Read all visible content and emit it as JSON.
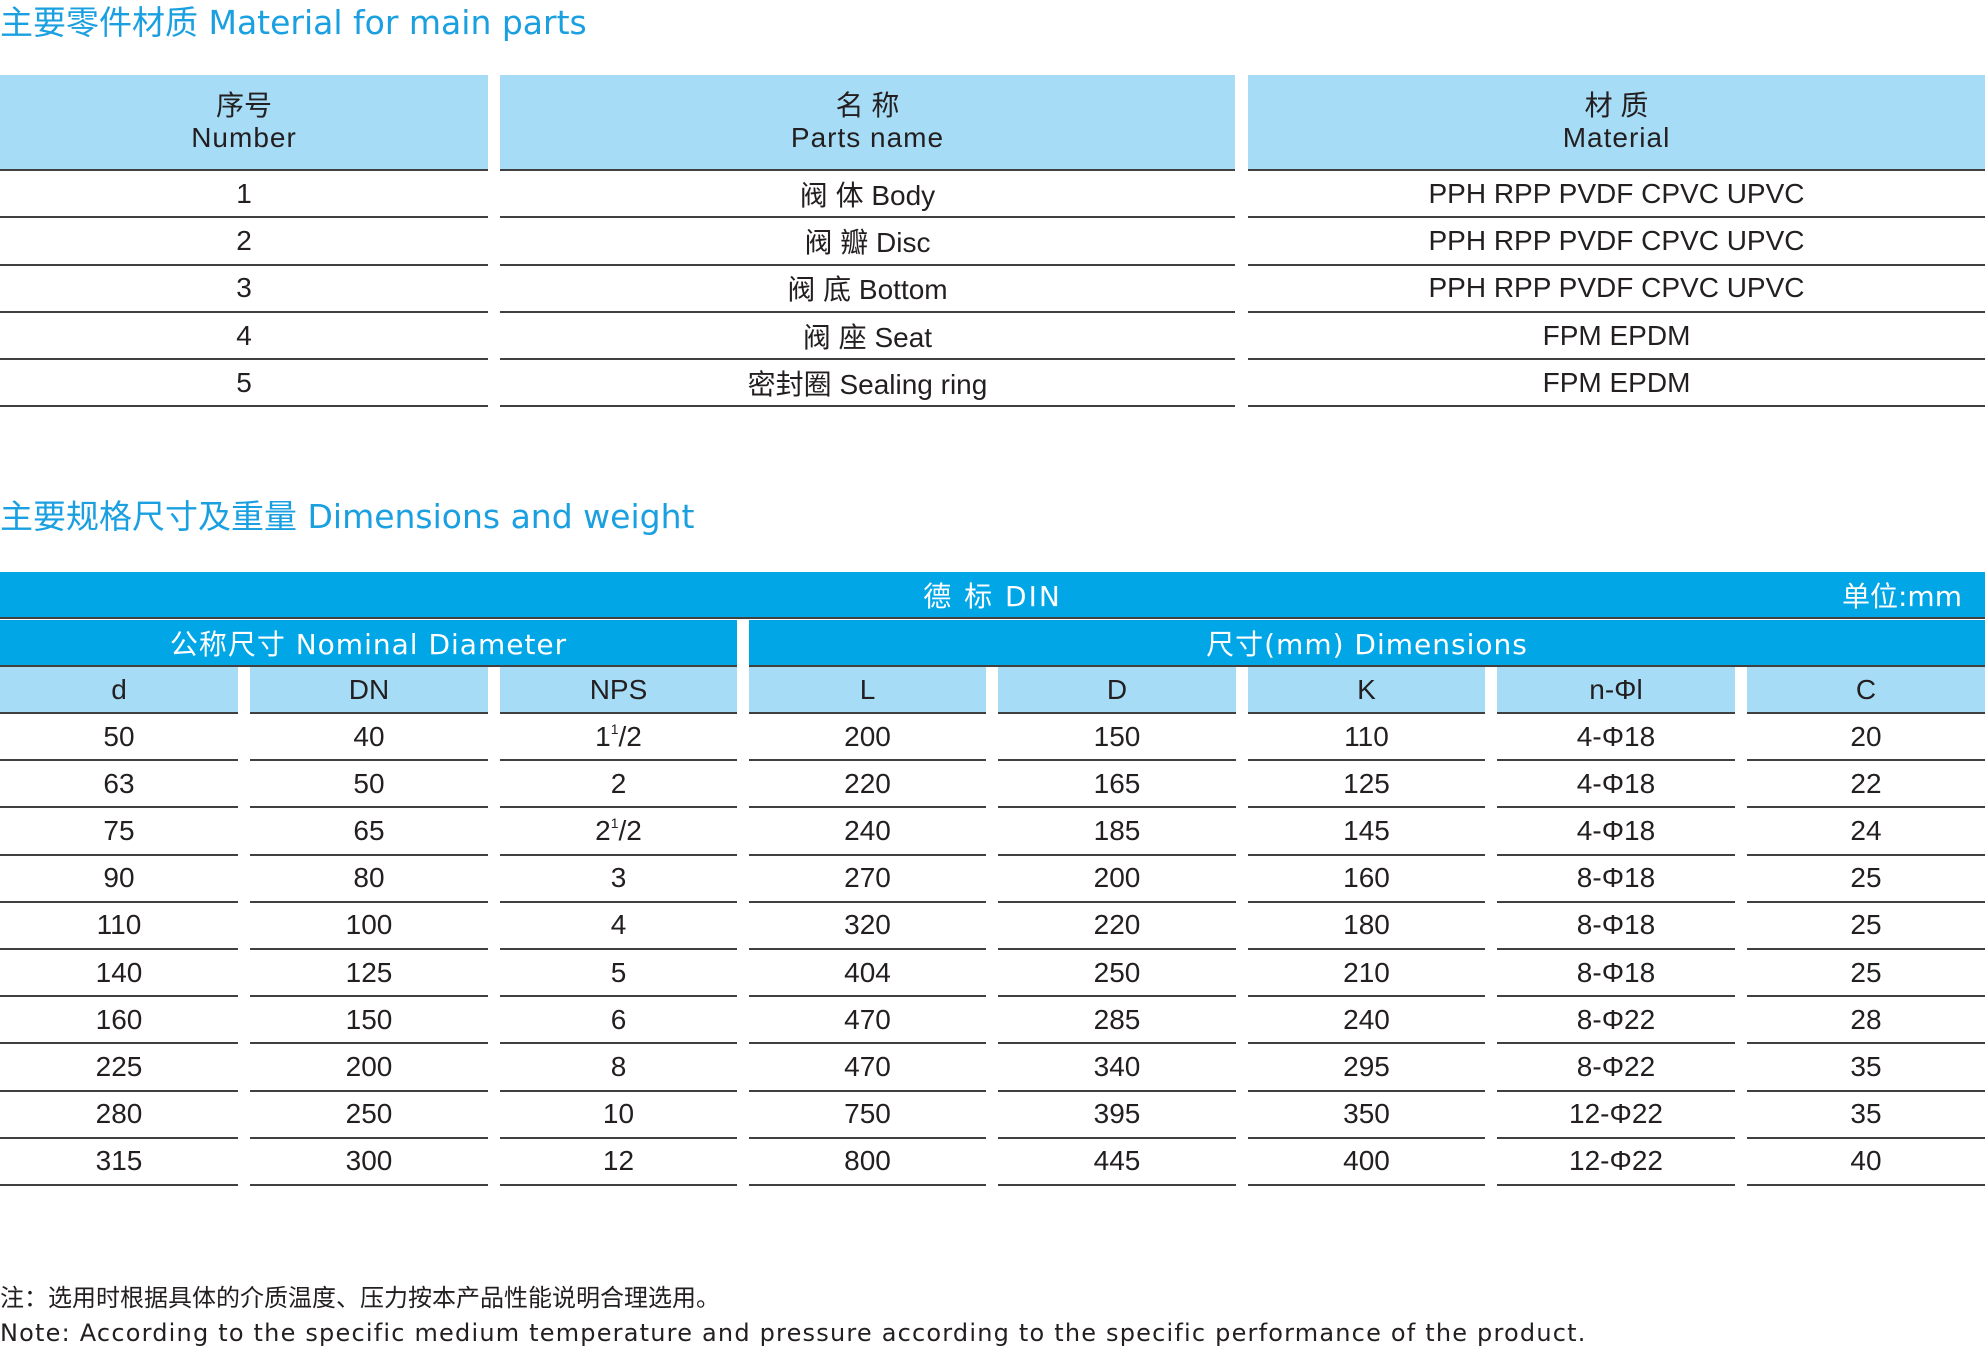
{
  "materials": {
    "title": "主要零件材质  Material for main parts",
    "headers": [
      {
        "cn": "序号",
        "en": "Number"
      },
      {
        "cn": "名 称",
        "en": "Parts name"
      },
      {
        "cn": "材 质",
        "en": "Material"
      }
    ],
    "rows": [
      {
        "number": "1",
        "name": "阀 体  Body",
        "material": "PPH  RPP  PVDF  CPVC  UPVC"
      },
      {
        "number": "2",
        "name": "阀 瓣  Disc",
        "material": "PPH  RPP  PVDF  CPVC  UPVC"
      },
      {
        "number": "3",
        "name": "阀 底  Bottom",
        "material": "PPH  RPP  PVDF  CPVC  UPVC"
      },
      {
        "number": "4",
        "name": "阀 座  Seat",
        "material": "FPM  EPDM"
      },
      {
        "number": "5",
        "name": "密封圈  Sealing ring",
        "material": "FPM  EPDM"
      }
    ]
  },
  "dimensions": {
    "title": "主要规格尺寸及重量  Dimensions and weight",
    "standard": "德 标  DIN",
    "unit": "单位:mm",
    "group_nominal": "公称尺寸  Nominal  Diameter",
    "group_dims": "尺寸(mm)   Dimensions",
    "columns": [
      "d",
      "DN",
      "NPS",
      "L",
      "D",
      "K",
      "n-Φl",
      "C"
    ],
    "rows": [
      [
        "50",
        "40",
        "1|1|2",
        "200",
        "150",
        "110",
        "4-Φ18",
        "20"
      ],
      [
        "63",
        "50",
        "2",
        "220",
        "165",
        "125",
        "4-Φ18",
        "22"
      ],
      [
        "75",
        "65",
        "2|1|2",
        "240",
        "185",
        "145",
        "4-Φ18",
        "24"
      ],
      [
        "90",
        "80",
        "3",
        "270",
        "200",
        "160",
        "8-Φ18",
        "25"
      ],
      [
        "110",
        "100",
        "4",
        "320",
        "220",
        "180",
        "8-Φ18",
        "25"
      ],
      [
        "140",
        "125",
        "5",
        "404",
        "250",
        "210",
        "8-Φ18",
        "25"
      ],
      [
        "160",
        "150",
        "6",
        "470",
        "285",
        "240",
        "8-Φ22",
        "28"
      ],
      [
        "225",
        "200",
        "8",
        "470",
        "340",
        "295",
        "8-Φ22",
        "35"
      ],
      [
        "280",
        "250",
        "10",
        "750",
        "395",
        "350",
        "12-Φ22",
        "35"
      ],
      [
        "315",
        "300",
        "12",
        "800",
        "445",
        "400",
        "12-Φ22",
        "40"
      ]
    ]
  },
  "notes": {
    "cn": "注：选用时根据具体的介质温度、压力按本产品性能说明合理选用。",
    "en": "Note: According to the specific medium temperature and pressure according to the specific performance of the product."
  },
  "colors": {
    "title": "#1aa0e0",
    "header_light": "#a6dcf5",
    "header_dark": "#00a6e6",
    "rule": "#404040"
  }
}
